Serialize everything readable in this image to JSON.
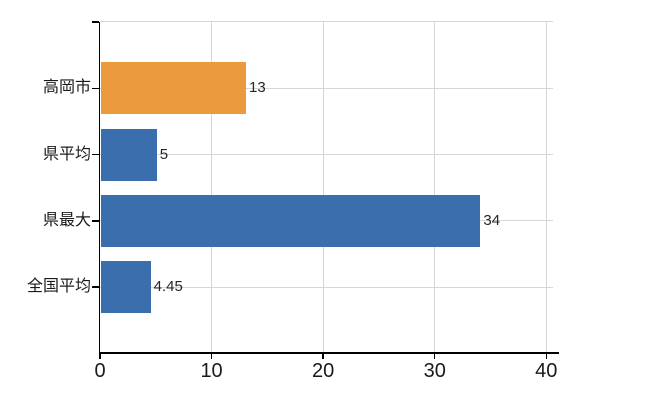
{
  "chart_data": {
    "type": "bar",
    "orientation": "horizontal",
    "title": "",
    "categories": [
      "高岡市",
      "県平均",
      "県最大",
      "全国平均"
    ],
    "values": [
      13,
      5,
      34,
      4.45
    ],
    "value_labels": [
      "13",
      "5",
      "34",
      "4.45"
    ],
    "bar_colors": [
      "#ec9a3e",
      "#3b6ead",
      "#3b6ead",
      "#3b6ead"
    ],
    "x_ticks": [
      "0",
      "10",
      "20",
      "30",
      "40"
    ],
    "x_tick_values": [
      0,
      10,
      20,
      30,
      40
    ],
    "xlim": [
      0,
      40.6
    ],
    "grid": true,
    "legend": "none"
  },
  "colors": {
    "background": "#ffffff",
    "axis": "#000000",
    "grid": "#d5d8d2",
    "category_text": "#1a1a1a",
    "value_text": "#262626",
    "tick_text": "#1a1a1a",
    "bar_orange": "#ec9a3e",
    "bar_blue": "#3b6ead"
  }
}
